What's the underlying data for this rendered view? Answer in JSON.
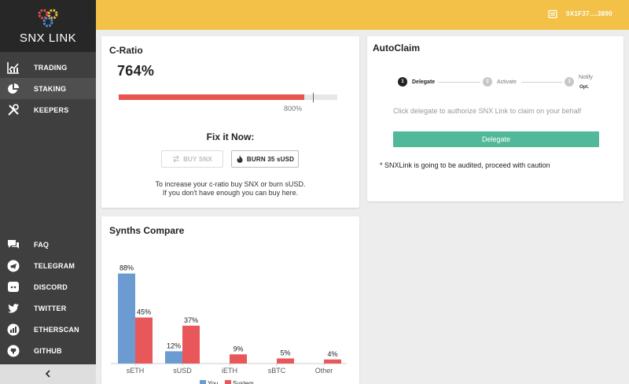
{
  "app": {
    "name": "SNX LINK"
  },
  "sidebar": {
    "top_items": [
      {
        "label": "TRADING",
        "icon": "chart-icon"
      },
      {
        "label": "STAKING",
        "icon": "pie-icon"
      },
      {
        "label": "KEEPERS",
        "icon": "tools-icon"
      }
    ],
    "bottom_items": [
      {
        "label": "FAQ",
        "icon": "chat-icon"
      },
      {
        "label": "TELEGRAM",
        "icon": "telegram-icon"
      },
      {
        "label": "DISCORD",
        "icon": "discord-icon"
      },
      {
        "label": "TWITTER",
        "icon": "twitter-icon"
      },
      {
        "label": "ETHERSCAN",
        "icon": "etherscan-icon"
      },
      {
        "label": "GITHUB",
        "icon": "github-icon"
      }
    ]
  },
  "header": {
    "wallet_address": "0X1F37....3890"
  },
  "cratio": {
    "title": "C-Ratio",
    "value": "764%",
    "target_label": "800%",
    "current": 764,
    "target": 800,
    "fix_title": "Fix it Now:",
    "buy_label": "BUY SNX",
    "burn_label": "BURN 35 sUSD",
    "hint_line1": "To increase your c-ratio buy SNX or burn sUSD.",
    "hint_line2": "If you don't have enough you can buy here."
  },
  "autoclaim": {
    "title": "AutoClaim",
    "steps": [
      {
        "num": "1",
        "label": "Delegate"
      },
      {
        "num": "2",
        "label": "Activate"
      },
      {
        "num": "3",
        "label": "Notify",
        "sub": "Opt."
      }
    ],
    "description": "Click delegate to authorize SNX Link to claim on your behalf",
    "button_label": "Delegate",
    "note": "* SNXLink is going to be audited, proceed with caution"
  },
  "synths": {
    "title": "Synths Compare"
  },
  "colors": {
    "you": "#6b9bd1",
    "system": "#e8585a",
    "accent": "#f3c148",
    "delegate": "#52b89a"
  },
  "chart_data": {
    "type": "bar",
    "categories": [
      "sETH",
      "sUSD",
      "iETH",
      "sBTC",
      "Other"
    ],
    "series": [
      {
        "name": "You",
        "values": [
          88,
          12,
          0,
          0,
          0
        ],
        "labels": [
          "88%",
          "12%",
          "",
          "",
          ""
        ]
      },
      {
        "name": "System",
        "values": [
          45,
          37,
          9,
          5,
          4
        ],
        "labels": [
          "45%",
          "37%",
          "9%",
          "5%",
          "4%"
        ]
      }
    ],
    "ylim": [
      0,
      100
    ],
    "legend": "bottom"
  }
}
